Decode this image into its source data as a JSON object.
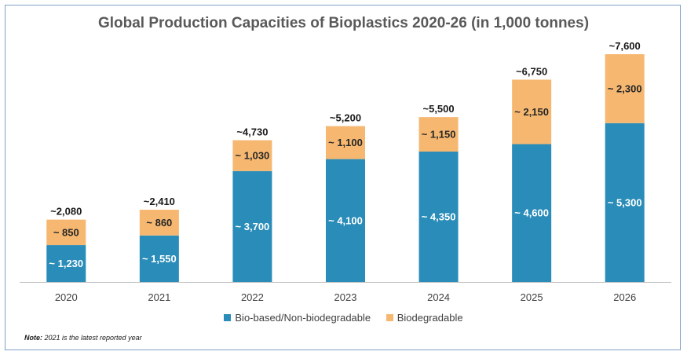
{
  "colors": {
    "bio_based": "#2a8cb8",
    "biodegradable": "#f6b871",
    "axis": "#bfbfbf"
  },
  "note": {
    "label": "Note:",
    "text": " 2021 is the latest reported year"
  },
  "chart_data": {
    "type": "bar",
    "stacked": true,
    "title": "Global Production Capacities of Bioplastics 2020-26 (in 1,000 tonnes)",
    "categories": [
      "2020",
      "2021",
      "2022",
      "2023",
      "2024",
      "2025",
      "2026"
    ],
    "series": [
      {
        "name": "Bio-based/Non-biodegradable",
        "values": [
          1230,
          1550,
          3700,
          4100,
          4350,
          4600,
          5300
        ],
        "labels": [
          "~ 1,230",
          "~ 1,550",
          "~ 3,700",
          "~ 4,100",
          "~ 4,350",
          "~ 4,600",
          "~ 5,300"
        ]
      },
      {
        "name": "Biodegradable",
        "values": [
          850,
          860,
          1030,
          1100,
          1150,
          2150,
          2300
        ],
        "labels": [
          "~ 850",
          "~ 860",
          "~ 1,030",
          "~ 1,100",
          "~ 1,150",
          "~ 2,150",
          "~ 2,300"
        ]
      }
    ],
    "totals": [
      2080,
      2410,
      4730,
      5200,
      5500,
      6750,
      7600
    ],
    "total_labels": [
      "~2,080",
      "~2,410",
      "~4,730",
      "~5,200",
      "~5,500",
      "~6,750",
      "~7,600"
    ],
    "ylim": [
      0,
      7600
    ],
    "grid": false,
    "legend": "bottom"
  }
}
